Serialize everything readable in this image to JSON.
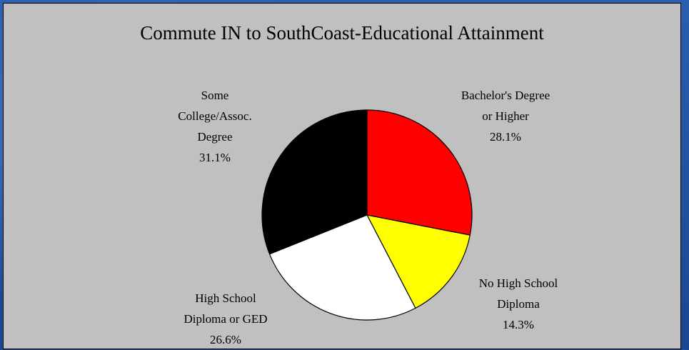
{
  "chart_data": {
    "type": "pie",
    "title": "Commute IN to SouthCoast-Educational Attainment",
    "slices": [
      {
        "label_lines": [
          "Bachelor's Degree",
          "or Higher"
        ],
        "value": 28.1,
        "value_label": "28.1%",
        "color": "#ff0000"
      },
      {
        "label_lines": [
          "No High School",
          "Diploma"
        ],
        "value": 14.3,
        "value_label": "14.3%",
        "color": "#ffff00"
      },
      {
        "label_lines": [
          "High School",
          "Diploma or GED"
        ],
        "value": 26.6,
        "value_label": "26.6%",
        "color": "#ffffff"
      },
      {
        "label_lines": [
          "Some",
          "College/Assoc.",
          "Degree"
        ],
        "value": 31.1,
        "value_label": "31.1%",
        "color": "#000000"
      }
    ],
    "start_angle_deg": 0,
    "direction": "clockwise",
    "legend": "none",
    "data_labels": "outside"
  },
  "colors": {
    "panel_background": "#c0c0c0",
    "page_background": "#1f4f9a"
  }
}
